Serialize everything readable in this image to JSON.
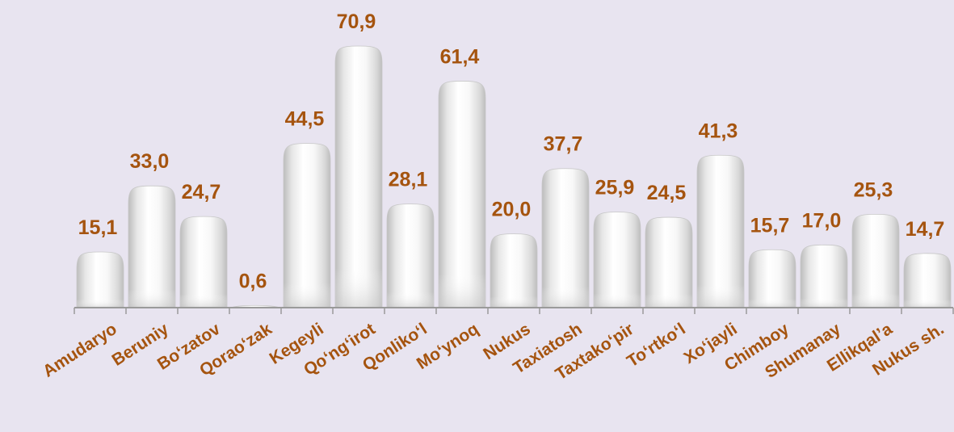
{
  "chart_data": {
    "type": "bar",
    "categories": [
      "Amudaryo",
      "Beruniy",
      "Bo‘zatov",
      "Qorao‘zak",
      "Kegeyli",
      "Qo‘ng‘irot",
      "Qonliko‘l",
      "Mo‘ynoq",
      "Nukus",
      "Taxiatosh",
      "Taxtako‘pir",
      "To‘rtko‘l",
      "Xo‘jayli",
      "Chimboy",
      "Shumanay",
      "Ellikqal’a",
      "Nukus sh."
    ],
    "values": [
      15.1,
      33.0,
      24.7,
      0.6,
      44.5,
      70.9,
      28.1,
      61.4,
      20.0,
      37.7,
      25.9,
      24.5,
      41.3,
      15.7,
      17.0,
      25.3,
      14.7
    ],
    "value_labels": [
      "15,1",
      "33,0",
      "24,7",
      "0,6",
      "44,5",
      "70,9",
      "28,1",
      "61,4",
      "20,0",
      "37,7",
      "25,9",
      "24,5",
      "41,3",
      "15,7",
      "17,0",
      "25,3",
      "14,7"
    ],
    "title": "",
    "xlabel": "",
    "ylabel": "",
    "ylim": [
      0,
      75
    ],
    "grid": false,
    "legend": "none",
    "colors": {
      "background": "#e8e4f0",
      "label": "#a5540f",
      "bar_light": "#ffffff",
      "bar_shade": "#bdbdbd",
      "axis": "#9a9a9a"
    }
  }
}
